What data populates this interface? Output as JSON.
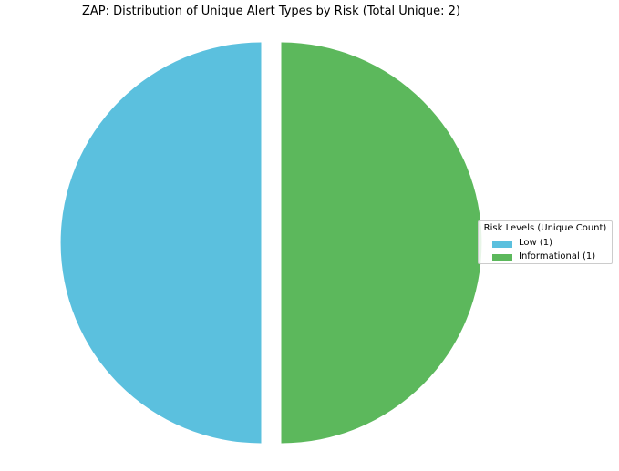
{
  "chart_data": {
    "type": "pie",
    "title": "ZAP: Distribution of Unique Alert Types by Risk (Total Unique: 2)",
    "legend_title": "Risk Levels (Unique Count)",
    "legend_placement": "right",
    "slices": [
      {
        "name": "Low",
        "label": "Low (1)",
        "value": 1,
        "color": "#5bc0de"
      },
      {
        "name": "Informational",
        "label": "Informational (1)",
        "value": 1,
        "color": "#5cb85c"
      }
    ]
  }
}
